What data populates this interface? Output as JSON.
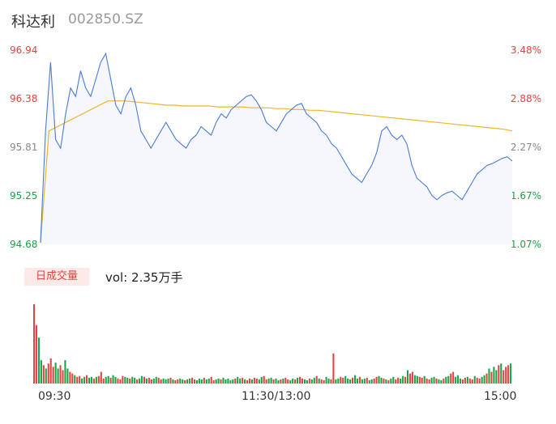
{
  "header": {
    "stock_name": "科达利",
    "stock_code": "002850.SZ"
  },
  "volume_panel": {
    "tag": "日成交量",
    "vol_text": "vol: 2.35万手"
  },
  "colors": {
    "up": "#e64340",
    "down": "#1aa34a",
    "flat": "#888888",
    "price_line": "#4a7bd8",
    "avg_line": "#f0b429",
    "area_fill": "#f5f7fc"
  },
  "chart_data": [
    {
      "type": "line",
      "title": "",
      "x_ticks": [
        "09:30",
        "11:30/13:00",
        "15:00"
      ],
      "ylim": [
        94.68,
        96.94
      ],
      "y_ticks": [
        "96.94",
        "96.38",
        "95.81",
        "95.25",
        "94.68"
      ],
      "y2_ticks": [
        "3.48%",
        "2.88%",
        "2.27%",
        "1.67%",
        "1.07%"
      ],
      "series": [
        {
          "values": [
            94.7,
            96.0,
            96.8,
            95.9,
            95.8,
            96.2,
            96.5,
            96.4,
            96.7,
            96.5,
            96.4,
            96.6,
            96.8,
            96.9,
            96.6,
            96.3,
            96.2,
            96.4,
            96.5,
            96.3,
            96.0,
            95.9,
            95.8,
            95.9,
            96.0,
            96.1,
            96.0,
            95.9,
            95.85,
            95.8,
            95.9,
            95.95,
            96.05,
            96.0,
            95.95,
            96.1,
            96.2,
            96.15,
            96.25,
            96.3,
            96.35,
            96.4,
            96.42,
            96.35,
            96.25,
            96.1,
            96.05,
            96.0,
            96.1,
            96.2,
            96.25,
            96.3,
            96.32,
            96.2,
            96.15,
            96.1,
            96.0,
            95.95,
            95.85,
            95.8,
            95.7,
            95.6,
            95.5,
            95.45,
            95.4,
            95.5,
            95.6,
            95.75,
            96.0,
            96.05,
            95.95,
            95.9,
            95.95,
            95.85,
            95.6,
            95.45,
            95.4,
            95.35,
            95.25,
            95.2,
            95.25,
            95.28,
            95.3,
            95.25,
            95.2,
            95.3,
            95.4,
            95.5,
            95.55,
            95.6,
            95.62,
            95.65,
            95.68,
            95.7,
            95.65
          ],
          "open": 94.68
        },
        {
          "values": [
            94.7,
            96.0,
            96.05,
            96.1,
            96.15,
            96.2,
            96.25,
            96.3,
            96.35,
            96.35,
            96.35,
            96.34,
            96.33,
            96.32,
            96.31,
            96.3,
            96.3,
            96.29,
            96.29,
            96.29,
            96.29,
            96.28,
            96.28,
            96.28,
            96.28,
            96.27,
            96.27,
            96.27,
            96.26,
            96.26,
            96.25,
            96.25,
            96.24,
            96.24,
            96.23,
            96.22,
            96.21,
            96.2,
            96.19,
            96.18,
            96.17,
            96.16,
            96.15,
            96.14,
            96.13,
            96.12,
            96.11,
            96.1,
            96.09,
            96.08,
            96.07,
            96.06,
            96.05,
            96.04,
            96.03,
            96.02,
            96.0
          ]
        }
      ]
    },
    {
      "type": "bar",
      "title": "",
      "volumes": [
        95,
        70,
        55,
        28,
        22,
        18,
        24,
        30,
        20,
        25,
        18,
        22,
        16,
        28,
        18,
        14,
        12,
        10,
        8,
        9,
        6,
        8,
        10,
        7,
        8,
        6,
        8,
        9,
        14,
        6,
        8,
        9,
        7,
        10,
        8,
        6,
        5,
        9,
        8,
        7,
        6,
        8,
        7,
        5,
        6,
        9,
        8,
        6,
        7,
        5,
        6,
        8,
        7,
        5,
        6,
        5,
        6,
        7,
        5,
        4,
        5,
        6,
        5,
        4,
        5,
        6,
        7,
        5,
        4,
        6,
        5,
        7,
        5,
        6,
        8,
        4,
        5,
        6,
        5,
        7,
        5,
        6,
        4,
        5,
        6,
        8,
        6,
        7,
        5,
        4,
        6,
        5,
        7,
        6,
        5,
        8,
        9,
        5,
        6,
        7,
        5,
        6,
        4,
        5,
        6,
        7,
        5,
        4,
        6,
        5,
        7,
        8,
        6,
        5,
        4,
        6,
        5,
        7,
        9,
        6,
        5,
        4,
        8,
        6,
        5,
        36,
        5,
        6,
        8,
        7,
        9,
        6,
        5,
        7,
        10,
        6,
        8,
        5,
        6,
        7,
        4,
        5,
        6,
        8,
        9,
        7,
        6,
        5,
        4,
        6,
        8,
        5,
        7,
        6,
        9,
        8,
        16,
        12,
        14,
        10,
        9,
        8,
        7,
        9,
        6,
        5,
        7,
        8,
        6,
        5,
        4,
        6,
        8,
        9,
        12,
        14,
        8,
        10,
        6,
        5,
        7,
        8,
        6,
        5,
        9,
        7,
        6,
        8,
        10,
        12,
        18,
        14,
        20,
        16,
        22,
        24,
        16,
        20,
        22,
        24
      ],
      "directions": "uudduduuudduudduuduuddudduduuuddudduuudduddudduduudduuddduduuddudduudddudduuddudddddudduduuduudduuddudduduudduduuddudduduudduudduudddudduddudduuddududduudduduudduuduudduddudduuddduuduuduuddududduduuuddudduuudduddudduuu"
    }
  ]
}
